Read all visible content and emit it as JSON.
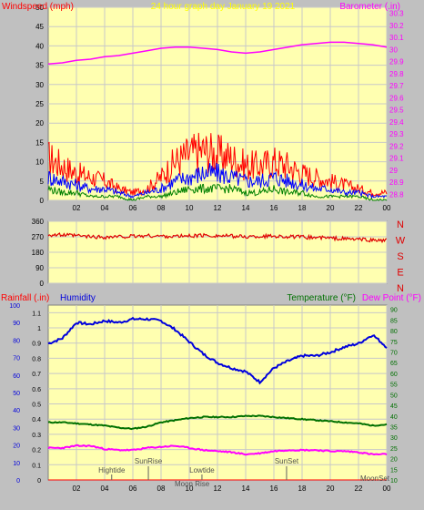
{
  "colors": {
    "bg": "#c0c0c0",
    "plot_bg": "#ffffb0",
    "grid": "#c8c8c8",
    "wind_gust": "#ff0000",
    "wind_avg": "#0000ff",
    "wind_low": "#008000",
    "barometer": "#ff00ff",
    "direction": "#e00000",
    "humidity": "#0000dd",
    "temperature": "#007000",
    "dewpoint": "#ff00ff",
    "rain": "#ff0000",
    "title": "#ffff00",
    "ticks": "#000000"
  },
  "chart_data": [
    {
      "type": "line",
      "panel": "wind-barometer",
      "title": "24 hour graph day   January 19 2021",
      "left_axis_label": "Windspeed (mph)",
      "right_axis_label": "Barometer (.in)",
      "x_tick_labels": [
        "02",
        "04",
        "06",
        "08",
        "10",
        "12",
        "14",
        "16",
        "18",
        "20",
        "22",
        "00"
      ],
      "left_ticks": [
        "50",
        "45",
        "40",
        "35",
        "30",
        "25",
        "20",
        "15",
        "10",
        "5",
        "0"
      ],
      "left_ylim": [
        0,
        50
      ],
      "right_ticks": [
        "30.3",
        "30.2",
        "30.1",
        "30",
        "29.9",
        "29.8",
        "29.7",
        "29.6",
        "29.5",
        "29.4",
        "29.3",
        "29.2",
        "29.1",
        "29",
        "28.9",
        "28.8"
      ],
      "right_ylim": [
        28.75,
        30.35
      ],
      "x_hours": [
        0,
        1,
        2,
        3,
        4,
        5,
        6,
        7,
        8,
        9,
        10,
        11,
        12,
        13,
        14,
        15,
        16,
        17,
        18,
        19,
        20,
        21,
        22,
        23,
        24
      ],
      "series": [
        {
          "name": "Windspeed (mph)",
          "role": "gust",
          "values": [
            11,
            9,
            7,
            6,
            5,
            3,
            2,
            3,
            6,
            10,
            12,
            13,
            12,
            11,
            9,
            9,
            10,
            9,
            7,
            6,
            5,
            4,
            3,
            2,
            2
          ]
        },
        {
          "name": "",
          "role": "average",
          "values": [
            6,
            5,
            4,
            3,
            3,
            2,
            1,
            2,
            3,
            5,
            6,
            7,
            7,
            6,
            5,
            5,
            6,
            5,
            4,
            3,
            3,
            2,
            2,
            1,
            1
          ]
        },
        {
          "name": "",
          "role": "low",
          "values": [
            3,
            2,
            2,
            1,
            1,
            1,
            0,
            1,
            1,
            2,
            3,
            3,
            3,
            3,
            2,
            2,
            3,
            2,
            2,
            1,
            1,
            1,
            1,
            0,
            0
          ]
        },
        {
          "name": "Barometer (.in)",
          "role": "barometer",
          "values": [
            29.88,
            29.89,
            29.91,
            29.92,
            29.94,
            29.95,
            29.97,
            29.99,
            30.01,
            30.02,
            30.02,
            30.01,
            30.0,
            29.98,
            29.97,
            29.98,
            30.0,
            30.02,
            30.04,
            30.05,
            30.06,
            30.06,
            30.05,
            30.04,
            30.02
          ]
        }
      ]
    },
    {
      "type": "line",
      "panel": "wind-direction",
      "left_ticks": [
        "360",
        "270",
        "180",
        "90",
        "0"
      ],
      "left_ylim": [
        0,
        360
      ],
      "right_labels": [
        "N",
        "W",
        "S",
        "E",
        "N"
      ],
      "x_hours": [
        0,
        1,
        2,
        3,
        4,
        5,
        6,
        7,
        8,
        9,
        10,
        11,
        12,
        13,
        14,
        15,
        16,
        17,
        18,
        19,
        20,
        21,
        22,
        23,
        24
      ],
      "series": [
        {
          "name": "",
          "role": "direction",
          "values": [
            282,
            280,
            276,
            270,
            268,
            270,
            272,
            276,
            274,
            272,
            275,
            278,
            276,
            274,
            270,
            272,
            275,
            270,
            268,
            266,
            262,
            258,
            255,
            250,
            248
          ]
        }
      ]
    },
    {
      "type": "line",
      "panel": "temperature-humidity",
      "rain_axis_label": "Rainfall (.in)",
      "humidity_axis_label": "Humidity",
      "temperature_axis_label": "Temperature (°F)",
      "dewpoint_axis_label": "Dew Point (°F)",
      "humidity_ticks": [
        "100",
        "90",
        "80",
        "70",
        "60",
        "50",
        "40",
        "30",
        "20",
        "10",
        "0"
      ],
      "humidity_ylim": [
        0,
        100
      ],
      "rain_ticks": [
        "1.1",
        "1",
        "0.9",
        "0.8",
        "0.7",
        "0.6",
        "0.5",
        "0.4",
        "0.3",
        "0.2",
        "0.1",
        "0"
      ],
      "rain_ylim": [
        0,
        1.15
      ],
      "temp_ticks": [
        "90",
        "85",
        "80",
        "75",
        "70",
        "65",
        "60",
        "55",
        "50",
        "45",
        "40",
        "35",
        "30",
        "25",
        "20",
        "15",
        "10"
      ],
      "temp_ylim": [
        10,
        92
      ],
      "x_tick_labels": [
        "02",
        "04",
        "06",
        "08",
        "10",
        "12",
        "14",
        "16",
        "18",
        "20",
        "22",
        "00"
      ],
      "x_hours": [
        0,
        1,
        2,
        3,
        4,
        5,
        6,
        7,
        8,
        9,
        10,
        11,
        12,
        13,
        14,
        15,
        16,
        17,
        18,
        19,
        20,
        21,
        22,
        23,
        24
      ],
      "series": [
        {
          "name": "Humidity",
          "role": "humidity",
          "values": [
            78,
            81,
            90,
            89,
            91,
            90,
            92,
            92,
            91,
            86,
            79,
            72,
            67,
            64,
            62,
            56,
            64,
            68,
            71,
            71,
            73,
            76,
            78,
            83,
            76
          ]
        },
        {
          "name": "Temperature (°F)",
          "role": "temperature",
          "values": [
            37,
            37,
            36.5,
            36,
            35.5,
            34.5,
            34,
            35,
            37,
            38,
            39,
            39.5,
            39.5,
            39.5,
            40,
            40,
            39.5,
            39,
            38.5,
            38,
            37.5,
            37,
            36.5,
            35.5,
            36
          ]
        },
        {
          "name": "Dew Point (°F)",
          "role": "dewpoint",
          "values": [
            25,
            25,
            26,
            26,
            24.5,
            24,
            24,
            25,
            25.5,
            26,
            25,
            24,
            23.5,
            23,
            22,
            22.5,
            23.5,
            24,
            24,
            24,
            23.5,
            23.5,
            23,
            22,
            22
          ]
        },
        {
          "name": "Rainfall (.in)",
          "role": "rain",
          "values": [
            0,
            0,
            0,
            0,
            0,
            0,
            0,
            0,
            0,
            0,
            0,
            0,
            0,
            0,
            0,
            0,
            0,
            0,
            0,
            0,
            0,
            0,
            0,
            0,
            0
          ]
        }
      ],
      "annotations": [
        {
          "label": "Hightide",
          "hour": 4.5
        },
        {
          "label": "SunRise",
          "hour": 7.1
        },
        {
          "label": "Lowtide",
          "hour": 10.9
        },
        {
          "label": "Moon Rise",
          "hour": 10.2
        },
        {
          "label": "SunSet",
          "hour": 16.9
        },
        {
          "label": "MoonSet",
          "hour": 23.6
        }
      ]
    }
  ]
}
